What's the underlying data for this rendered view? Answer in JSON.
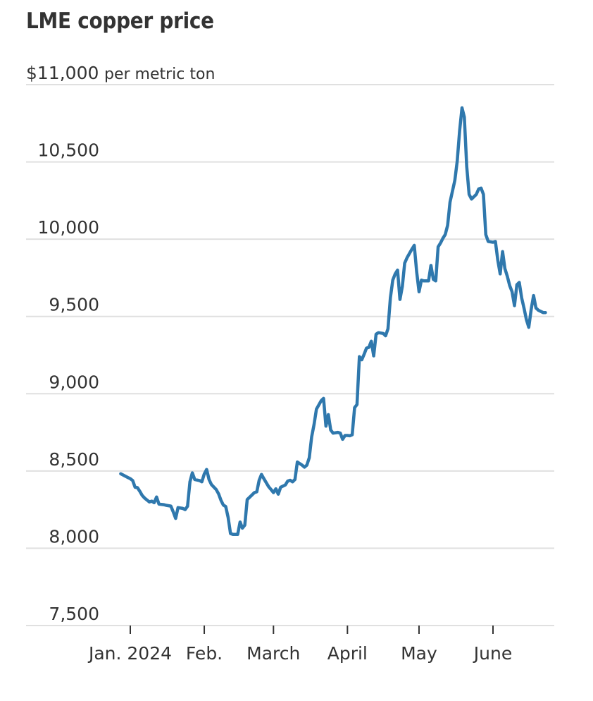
{
  "chart_data": {
    "type": "line",
    "title": "LME copper price",
    "unit_label": "per metric ton",
    "xlabel": "",
    "ylabel": "",
    "ylim": [
      7500,
      11000
    ],
    "y_ticks": [
      {
        "value": 11000,
        "label": "$11,000"
      },
      {
        "value": 10500,
        "label": "10,500"
      },
      {
        "value": 10000,
        "label": "10,000"
      },
      {
        "value": 9500,
        "label": "9,500"
      },
      {
        "value": 9000,
        "label": "9,000"
      },
      {
        "value": 8500,
        "label": "8,500"
      },
      {
        "value": 8000,
        "label": "8,000"
      },
      {
        "value": 7500,
        "label": "7,500"
      }
    ],
    "x_ticks": [
      {
        "day": 0,
        "label": "Jan. 2024"
      },
      {
        "day": 31,
        "label": "Feb."
      },
      {
        "day": 60,
        "label": "March"
      },
      {
        "day": 91,
        "label": "April"
      },
      {
        "day": 121,
        "label": "May"
      },
      {
        "day": 152,
        "label": "June"
      }
    ],
    "x_range_days": [
      -44,
      175
    ],
    "grid": true,
    "legend": "none",
    "line_color": "#2f78ad",
    "series": [
      {
        "name": "LME copper",
        "x_unit": "days since Jan. 1, 2024",
        "points": [
          [
            -4,
            8482
          ],
          [
            -1,
            8458
          ],
          [
            0,
            8450
          ],
          [
            1,
            8438
          ],
          [
            2,
            8395
          ],
          [
            3,
            8392
          ],
          [
            4,
            8368
          ],
          [
            5,
            8342
          ],
          [
            6,
            8325
          ],
          [
            8,
            8300
          ],
          [
            9,
            8305
          ],
          [
            10,
            8295
          ],
          [
            11,
            8332
          ],
          [
            12,
            8286
          ],
          [
            14,
            8282
          ],
          [
            15,
            8278
          ],
          [
            17,
            8273
          ],
          [
            18,
            8235
          ],
          [
            19,
            8193
          ],
          [
            20,
            8263
          ],
          [
            22,
            8258
          ],
          [
            23,
            8250
          ],
          [
            24,
            8272
          ],
          [
            25,
            8430
          ],
          [
            26,
            8488
          ],
          [
            27,
            8445
          ],
          [
            29,
            8438
          ],
          [
            30,
            8430
          ],
          [
            31,
            8480
          ],
          [
            32,
            8510
          ],
          [
            33,
            8445
          ],
          [
            34,
            8412
          ],
          [
            36,
            8380
          ],
          [
            37,
            8352
          ],
          [
            38,
            8310
          ],
          [
            39,
            8280
          ],
          [
            40,
            8270
          ],
          [
            41,
            8200
          ],
          [
            42,
            8095
          ],
          [
            43,
            8090
          ],
          [
            45,
            8090
          ],
          [
            46,
            8170
          ],
          [
            47,
            8130
          ],
          [
            48,
            8150
          ],
          [
            49,
            8315
          ],
          [
            50,
            8330
          ],
          [
            52,
            8360
          ],
          [
            53,
            8365
          ],
          [
            54,
            8440
          ],
          [
            55,
            8478
          ],
          [
            56,
            8450
          ],
          [
            58,
            8398
          ],
          [
            59,
            8380
          ],
          [
            60,
            8360
          ],
          [
            61,
            8385
          ],
          [
            62,
            8350
          ],
          [
            63,
            8395
          ],
          [
            65,
            8410
          ],
          [
            66,
            8435
          ],
          [
            67,
            8440
          ],
          [
            68,
            8430
          ],
          [
            69,
            8445
          ],
          [
            70,
            8558
          ],
          [
            72,
            8538
          ],
          [
            73,
            8525
          ],
          [
            74,
            8538
          ],
          [
            75,
            8585
          ],
          [
            76,
            8720
          ],
          [
            77,
            8800
          ],
          [
            78,
            8900
          ],
          [
            80,
            8955
          ],
          [
            81,
            8970
          ],
          [
            82,
            8790
          ],
          [
            83,
            8865
          ],
          [
            84,
            8765
          ],
          [
            85,
            8745
          ],
          [
            87,
            8750
          ],
          [
            88,
            8745
          ],
          [
            89,
            8705
          ],
          [
            90,
            8730
          ],
          [
            91,
            8730
          ],
          [
            92,
            8728
          ],
          [
            93,
            8735
          ],
          [
            94,
            8910
          ],
          [
            95,
            8930
          ],
          [
            96,
            9240
          ],
          [
            97,
            9220
          ],
          [
            98,
            9255
          ],
          [
            99,
            9295
          ],
          [
            100,
            9300
          ],
          [
            101,
            9340
          ],
          [
            102,
            9245
          ],
          [
            103,
            9385
          ],
          [
            104,
            9395
          ],
          [
            106,
            9390
          ],
          [
            107,
            9375
          ],
          [
            108,
            9420
          ],
          [
            109,
            9620
          ],
          [
            110,
            9735
          ],
          [
            111,
            9775
          ],
          [
            112,
            9800
          ],
          [
            113,
            9610
          ],
          [
            114,
            9695
          ],
          [
            115,
            9845
          ],
          [
            116,
            9880
          ],
          [
            118,
            9935
          ],
          [
            119,
            9960
          ],
          [
            120,
            9790
          ],
          [
            121,
            9660
          ],
          [
            122,
            9735
          ],
          [
            123,
            9730
          ],
          [
            125,
            9730
          ],
          [
            126,
            9830
          ],
          [
            127,
            9740
          ],
          [
            128,
            9730
          ],
          [
            129,
            9950
          ],
          [
            130,
            9975
          ],
          [
            131,
            10005
          ],
          [
            132,
            10030
          ],
          [
            133,
            10090
          ],
          [
            134,
            10240
          ],
          [
            136,
            10380
          ],
          [
            137,
            10505
          ],
          [
            138,
            10700
          ],
          [
            139,
            10850
          ],
          [
            140,
            10790
          ],
          [
            141,
            10470
          ],
          [
            142,
            10290
          ],
          [
            143,
            10260
          ],
          [
            145,
            10290
          ],
          [
            146,
            10325
          ],
          [
            147,
            10330
          ],
          [
            148,
            10290
          ],
          [
            149,
            10030
          ],
          [
            150,
            9985
          ],
          [
            152,
            9980
          ],
          [
            153,
            9985
          ],
          [
            154,
            9865
          ],
          [
            155,
            9775
          ],
          [
            156,
            9920
          ],
          [
            157,
            9810
          ],
          [
            158,
            9760
          ],
          [
            159,
            9700
          ],
          [
            160,
            9660
          ],
          [
            161,
            9570
          ],
          [
            162,
            9705
          ],
          [
            163,
            9720
          ],
          [
            164,
            9620
          ],
          [
            165,
            9555
          ],
          [
            166,
            9480
          ],
          [
            167,
            9430
          ],
          [
            168,
            9545
          ],
          [
            169,
            9635
          ],
          [
            170,
            9555
          ],
          [
            171,
            9540
          ],
          [
            173,
            9525
          ],
          [
            174,
            9525
          ]
        ]
      }
    ]
  }
}
